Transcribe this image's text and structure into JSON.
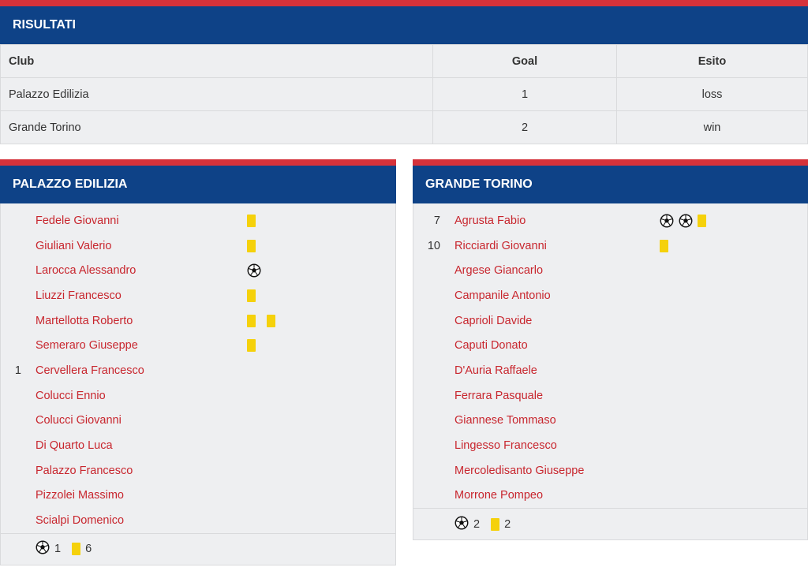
{
  "results": {
    "title": "RISULTATI",
    "columns": {
      "club": "Club",
      "goal": "Goal",
      "esito": "Esito"
    },
    "rows": [
      {
        "club": "Palazzo Edilizia",
        "goal": "1",
        "esito": "loss"
      },
      {
        "club": "Grande Torino",
        "goal": "2",
        "esito": "win"
      }
    ]
  },
  "teams": [
    {
      "name": "PALAZZO EDILIZIA",
      "players": [
        {
          "number": "",
          "name": "Fedele Giovanni",
          "events": [
            "yellow-card"
          ]
        },
        {
          "number": "",
          "name": "Giuliani Valerio",
          "events": [
            "yellow-card"
          ]
        },
        {
          "number": "",
          "name": "Larocca Alessandro",
          "events": [
            "goal"
          ]
        },
        {
          "number": "",
          "name": "Liuzzi Francesco",
          "events": [
            "yellow-card"
          ]
        },
        {
          "number": "",
          "name": "Martellotta Roberto",
          "events": [
            "yellow-card",
            "yellow-card"
          ]
        },
        {
          "number": "",
          "name": "Semeraro Giuseppe",
          "events": [
            "yellow-card"
          ]
        },
        {
          "number": "1",
          "name": "Cervellera Francesco",
          "events": []
        },
        {
          "number": "",
          "name": "Colucci Ennio",
          "events": []
        },
        {
          "number": "",
          "name": "Colucci Giovanni",
          "events": []
        },
        {
          "number": "",
          "name": "Di Quarto Luca",
          "events": []
        },
        {
          "number": "",
          "name": "Palazzo Francesco",
          "events": []
        },
        {
          "number": "",
          "name": "Pizzolei Massimo",
          "events": []
        },
        {
          "number": "",
          "name": "Scialpi Domenico",
          "events": []
        }
      ],
      "totals": {
        "goals": "1",
        "yellow_cards": "6"
      }
    },
    {
      "name": "GRANDE TORINO",
      "players": [
        {
          "number": "7",
          "name": "Agrusta Fabio",
          "events": [
            "goal",
            "goal",
            "yellow-card"
          ]
        },
        {
          "number": "10",
          "name": "Ricciardi Giovanni",
          "events": [
            "yellow-card"
          ]
        },
        {
          "number": "",
          "name": "Argese Giancarlo",
          "events": []
        },
        {
          "number": "",
          "name": "Campanile Antonio",
          "events": []
        },
        {
          "number": "",
          "name": "Caprioli Davide",
          "events": []
        },
        {
          "number": "",
          "name": "Caputi Donato",
          "events": []
        },
        {
          "number": "",
          "name": "D'Auria Raffaele",
          "events": []
        },
        {
          "number": "",
          "name": "Ferrara Pasquale",
          "events": []
        },
        {
          "number": "",
          "name": "Giannese Tommaso",
          "events": []
        },
        {
          "number": "",
          "name": "Lingesso Francesco",
          "events": []
        },
        {
          "number": "",
          "name": "Mercoledisanto Giuseppe",
          "events": []
        },
        {
          "number": "",
          "name": "Morrone Pompeo",
          "events": []
        }
      ],
      "totals": {
        "goals": "2",
        "yellow_cards": "2"
      }
    }
  ],
  "colors": {
    "header": "#0e4287",
    "stripe": "#d5323a",
    "player_link": "#c8262e",
    "yellow_card": "#f5d10b",
    "panel_bg": "#eeeff1"
  },
  "icons": {
    "goal": "soccer-ball-icon",
    "yellow-card": "yellow-card-icon"
  }
}
